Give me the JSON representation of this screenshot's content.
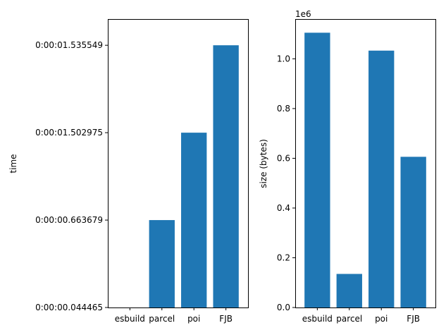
{
  "chart_data": [
    {
      "type": "bar",
      "categories": [
        "esbuild",
        "parcel",
        "poi",
        "FJB"
      ],
      "values": [
        0,
        1,
        2,
        3
      ],
      "yticks": [
        "0:00:00.044465",
        "0:00:00.663679",
        "0:00:01.502975",
        "0:00:01.535549"
      ],
      "ylabel": "time",
      "xlabel": "",
      "title": "",
      "ylim": [
        0,
        3.3
      ],
      "grid": false,
      "color": "#1f77b4"
    },
    {
      "type": "bar",
      "categories": [
        "esbuild",
        "parcel",
        "poi",
        "FJB"
      ],
      "values": [
        1105000,
        135000,
        1033000,
        606000
      ],
      "yticks": [
        "0.0",
        "0.2",
        "0.4",
        "0.6",
        "0.8",
        "1.0"
      ],
      "ytick_values": [
        0,
        0.2,
        0.4,
        0.6,
        0.8,
        1.0
      ],
      "offset_label": "1e6",
      "ylabel": "size (bytes)",
      "xlabel": "",
      "title": "",
      "ylim": [
        0,
        1160000
      ],
      "grid": false,
      "color": "#1f77b4"
    }
  ]
}
